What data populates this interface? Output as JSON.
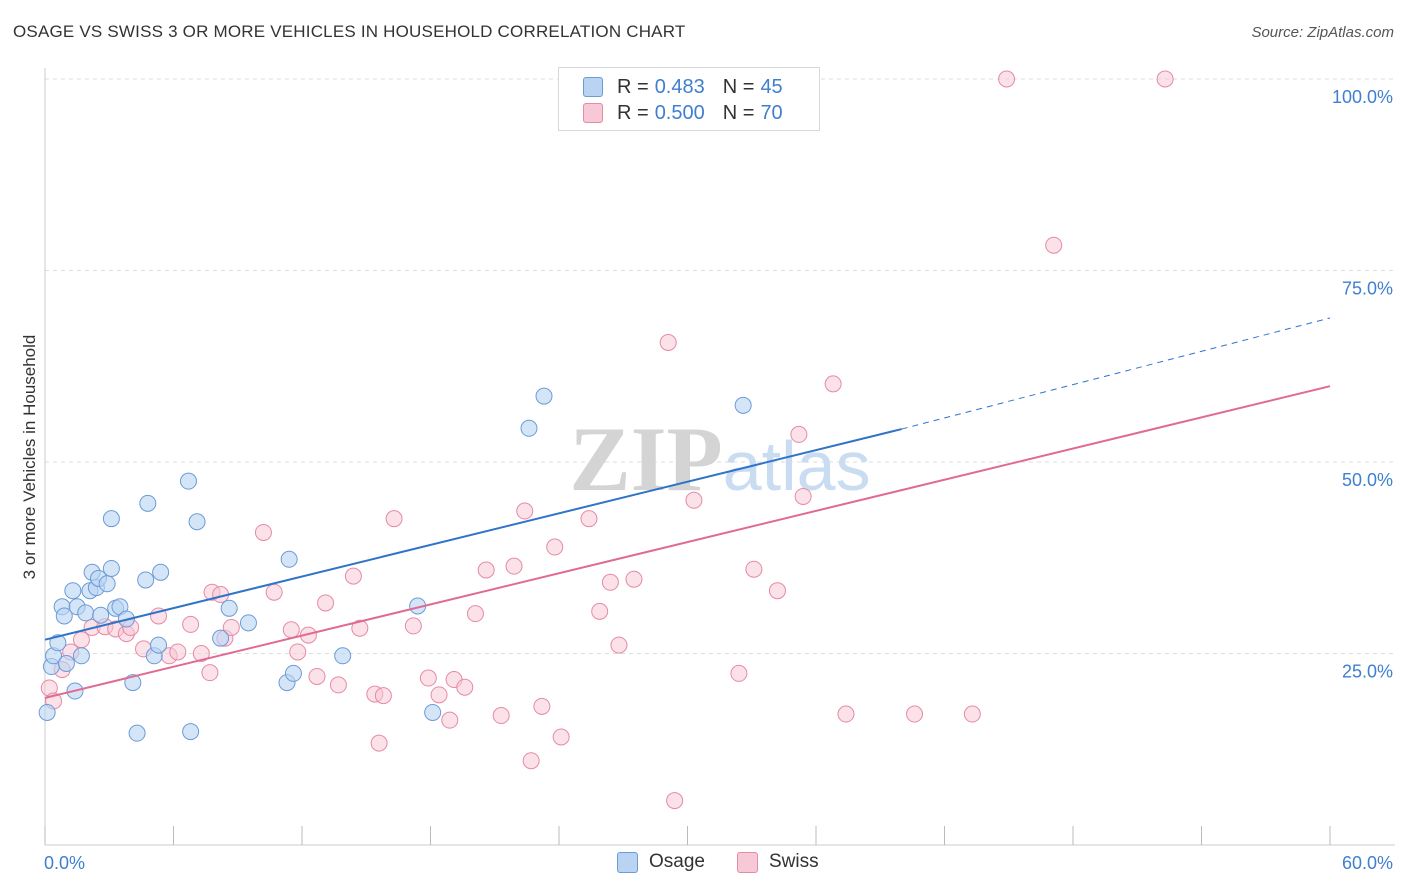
{
  "header": {
    "title": "OSAGE VS SWISS 3 OR MORE VEHICLES IN HOUSEHOLD CORRELATION CHART",
    "source": "Source: ZipAtlas.com"
  },
  "legend": {
    "r_label": "R =",
    "n_label": "N =",
    "osage": {
      "r": "0.483",
      "n": "45"
    },
    "swiss": {
      "r": "0.500",
      "n": "70"
    }
  },
  "bottom_legend": {
    "osage": "Osage",
    "swiss": "Swiss"
  },
  "colors": {
    "osage_fill": "#b9d3f3",
    "osage_stroke": "#6c9bd6",
    "osage_line": "#2f74c8",
    "swiss_fill": "#f7c8d6",
    "swiss_stroke": "#e68aa7",
    "swiss_line": "#e06a92",
    "tick_label": "#3f7fd0",
    "grid": "#dddddd"
  },
  "chart_data": {
    "type": "scatter",
    "title": "OSAGE VS SWISS 3 OR MORE VEHICLES IN HOUSEHOLD CORRELATION CHART",
    "xlabel": "",
    "ylabel": "3 or more Vehicles in Household",
    "xlim": [
      0,
      60
    ],
    "ylim": [
      0,
      100
    ],
    "x_tick_labels": [
      "0.0%",
      "60.0%"
    ],
    "y_ticks": [
      25,
      50,
      75,
      100
    ],
    "y_tick_labels": [
      "25.0%",
      "50.0%",
      "75.0%",
      "100.0%"
    ],
    "watermark": "ZIPatlas",
    "series": [
      {
        "name": "Osage",
        "r": 0.483,
        "n": 45,
        "trend": {
          "x0": 0,
          "y0": 26.8,
          "x1": 40,
          "y1": 54.3,
          "dashed_to_x": 60,
          "dashed_to_y": 68.8
        },
        "points": [
          [
            0.1,
            17.3
          ],
          [
            0.3,
            23.3
          ],
          [
            0.4,
            24.7
          ],
          [
            0.6,
            26.4
          ],
          [
            0.8,
            31.1
          ],
          [
            0.9,
            29.9
          ],
          [
            1.0,
            23.7
          ],
          [
            1.3,
            33.2
          ],
          [
            1.4,
            20.1
          ],
          [
            1.5,
            31.1
          ],
          [
            1.7,
            24.7
          ],
          [
            1.9,
            30.3
          ],
          [
            2.1,
            33.2
          ],
          [
            2.2,
            35.6
          ],
          [
            2.4,
            33.6
          ],
          [
            2.5,
            34.8
          ],
          [
            2.6,
            30.0
          ],
          [
            2.9,
            34.1
          ],
          [
            3.1,
            36.1
          ],
          [
            3.1,
            42.6
          ],
          [
            3.3,
            30.9
          ],
          [
            3.5,
            31.1
          ],
          [
            3.8,
            29.5
          ],
          [
            4.1,
            21.2
          ],
          [
            4.3,
            14.6
          ],
          [
            4.7,
            34.6
          ],
          [
            4.8,
            44.6
          ],
          [
            5.1,
            24.7
          ],
          [
            5.3,
            26.1
          ],
          [
            5.4,
            35.6
          ],
          [
            6.7,
            47.5
          ],
          [
            6.8,
            14.8
          ],
          [
            7.1,
            42.2
          ],
          [
            8.2,
            27.0
          ],
          [
            8.6,
            30.9
          ],
          [
            9.5,
            29.0
          ],
          [
            11.3,
            21.2
          ],
          [
            11.4,
            37.3
          ],
          [
            11.6,
            22.4
          ],
          [
            13.9,
            24.7
          ],
          [
            17.4,
            31.2
          ],
          [
            18.1,
            17.3
          ],
          [
            22.6,
            54.4
          ],
          [
            23.3,
            58.6
          ],
          [
            32.6,
            57.4
          ]
        ]
      },
      {
        "name": "Swiss",
        "r": 0.5,
        "n": 70,
        "trend": {
          "x0": 0,
          "y0": 19.2,
          "x1": 60,
          "y1": 59.9
        },
        "points": [
          [
            0.2,
            20.5
          ],
          [
            0.4,
            18.8
          ],
          [
            0.8,
            22.9
          ],
          [
            1.2,
            25.2
          ],
          [
            1.7,
            26.8
          ],
          [
            2.2,
            28.4
          ],
          [
            2.8,
            28.5
          ],
          [
            3.3,
            28.2
          ],
          [
            3.8,
            27.6
          ],
          [
            4.0,
            28.4
          ],
          [
            4.6,
            25.6
          ],
          [
            5.3,
            29.9
          ],
          [
            5.8,
            24.7
          ],
          [
            6.2,
            25.2
          ],
          [
            6.8,
            28.8
          ],
          [
            7.3,
            25.0
          ],
          [
            7.7,
            22.5
          ],
          [
            7.8,
            33.0
          ],
          [
            8.2,
            32.7
          ],
          [
            8.4,
            27.0
          ],
          [
            8.7,
            28.4
          ],
          [
            10.2,
            40.8
          ],
          [
            10.7,
            33.0
          ],
          [
            11.5,
            28.1
          ],
          [
            11.8,
            25.2
          ],
          [
            12.3,
            27.4
          ],
          [
            12.7,
            22.0
          ],
          [
            13.1,
            31.6
          ],
          [
            13.7,
            20.9
          ],
          [
            14.4,
            35.1
          ],
          [
            14.7,
            28.3
          ],
          [
            15.4,
            19.7
          ],
          [
            15.6,
            13.3
          ],
          [
            15.8,
            19.5
          ],
          [
            16.3,
            42.6
          ],
          [
            17.2,
            28.6
          ],
          [
            17.9,
            21.8
          ],
          [
            18.4,
            19.6
          ],
          [
            18.9,
            16.3
          ],
          [
            19.1,
            21.6
          ],
          [
            19.6,
            20.6
          ],
          [
            20.1,
            30.2
          ],
          [
            20.6,
            35.9
          ],
          [
            21.3,
            16.9
          ],
          [
            21.9,
            36.4
          ],
          [
            22.4,
            43.6
          ],
          [
            22.7,
            11.0
          ],
          [
            23.2,
            18.1
          ],
          [
            23.8,
            38.9
          ],
          [
            24.1,
            14.1
          ],
          [
            25.4,
            42.6
          ],
          [
            25.9,
            30.5
          ],
          [
            26.4,
            34.3
          ],
          [
            26.8,
            26.1
          ],
          [
            27.5,
            34.7
          ],
          [
            29.1,
            65.6
          ],
          [
            29.4,
            5.8
          ],
          [
            30.3,
            45.0
          ],
          [
            32.4,
            22.4
          ],
          [
            33.1,
            36.0
          ],
          [
            34.2,
            33.2
          ],
          [
            35.2,
            53.6
          ],
          [
            35.4,
            45.5
          ],
          [
            36.8,
            60.2
          ],
          [
            37.4,
            17.1
          ],
          [
            40.6,
            17.1
          ],
          [
            43.3,
            17.1
          ],
          [
            44.9,
            100.0
          ],
          [
            47.1,
            78.3
          ],
          [
            52.3,
            100.0
          ]
        ]
      }
    ]
  }
}
